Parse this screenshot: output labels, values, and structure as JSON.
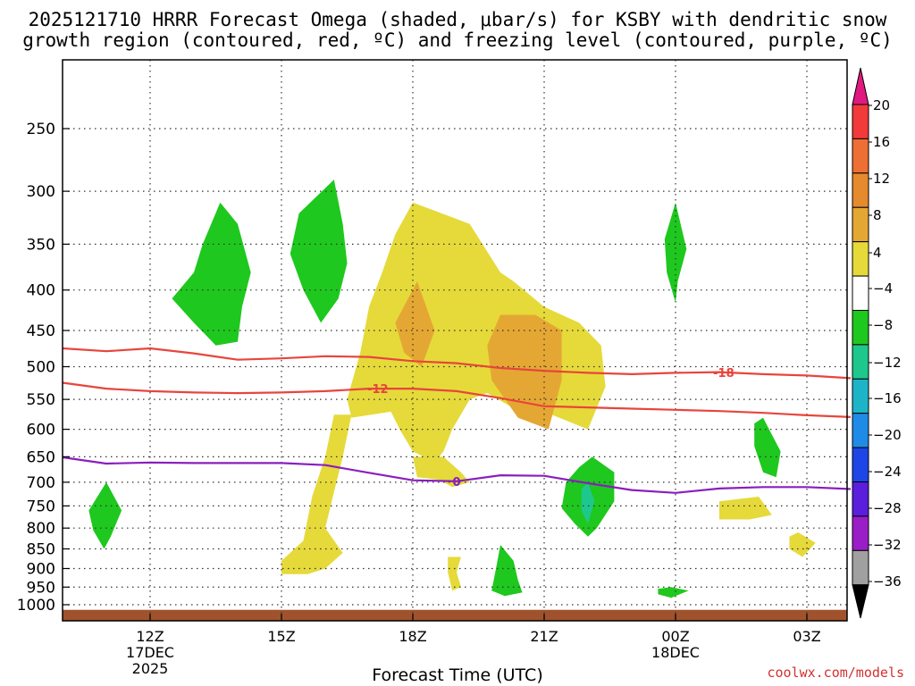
{
  "header": {
    "title_line1": "2025121710 HRRR Forecast Omega (shaded, μbar/s) for KSBY with dendritic snow",
    "title_line2": "growth region (contoured, red, ºC) and freezing level (contoured, purple, ºC)"
  },
  "footer": {
    "credit": "coolwx.com/models"
  },
  "chart_data": {
    "type": "heatmap",
    "title": "2025121710 HRRR Forecast Omega (shaded, μbar/s) for KSBY with dendritic snow growth region (contoured, red, ºC) and freezing level (contoured, purple, ºC)",
    "xlabel": "Forecast Time (UTC)",
    "ylabel": "",
    "y_scale": "log-pressure",
    "y_range_hpa": [
      1050,
      200
    ],
    "grid": true,
    "x_ticks": [
      {
        "label": "12Z",
        "sub1": "17DEC",
        "sub2": "2025",
        "hour": 12
      },
      {
        "label": "15Z",
        "sub1": "",
        "sub2": "",
        "hour": 15
      },
      {
        "label": "18Z",
        "sub1": "",
        "sub2": "",
        "hour": 18
      },
      {
        "label": "21Z",
        "sub1": "",
        "sub2": "",
        "hour": 21
      },
      {
        "label": "00Z",
        "sub1": "18DEC",
        "sub2": "",
        "hour": 24
      },
      {
        "label": "03Z",
        "sub1": "",
        "sub2": "",
        "hour": 27
      }
    ],
    "y_ticks": [
      250,
      300,
      350,
      400,
      450,
      500,
      550,
      600,
      650,
      700,
      750,
      800,
      850,
      900,
      950,
      1000
    ],
    "colorbar": {
      "labels": [
        "20",
        "16",
        "12",
        "8",
        "4",
        "−4",
        "−8",
        "−12",
        "−16",
        "−20",
        "−24",
        "−28",
        "−32",
        "−36"
      ],
      "colors": [
        "#f23a3a",
        "#ee6f33",
        "#e68a2e",
        "#e5a733",
        "#e5da3a",
        "#ffffff",
        "#1ec81e",
        "#1ec88c",
        "#1eb4c8",
        "#1e8ce6",
        "#1e46e6",
        "#5a1edc",
        "#9a1ec8",
        "#a0a0a0"
      ],
      "top_arrow_color": "#e01a80",
      "bottom_arrow_color": "#000000"
    },
    "dendritic_contours": [
      {
        "label": "-18",
        "color": "#e8453c",
        "points": [
          [
            10.0,
            474
          ],
          [
            11.0,
            478
          ],
          [
            12.0,
            474
          ],
          [
            13.0,
            481
          ],
          [
            14.0,
            490
          ],
          [
            15.0,
            488
          ],
          [
            16.0,
            485
          ],
          [
            17.0,
            486
          ],
          [
            18.0,
            492
          ],
          [
            19.0,
            495
          ],
          [
            20.0,
            502
          ],
          [
            21.0,
            506
          ],
          [
            22.0,
            509
          ],
          [
            23.0,
            511
          ],
          [
            24.0,
            509
          ],
          [
            25.0,
            508
          ],
          [
            26.0,
            511
          ],
          [
            27.0,
            513
          ],
          [
            28.0,
            517
          ]
        ]
      },
      {
        "label": "-12",
        "color": "#e8453c",
        "points": [
          [
            10.0,
            524
          ],
          [
            11.0,
            533
          ],
          [
            12.0,
            537
          ],
          [
            13.0,
            539
          ],
          [
            14.0,
            540
          ],
          [
            15.0,
            539
          ],
          [
            16.0,
            537
          ],
          [
            17.0,
            533
          ],
          [
            18.0,
            533
          ],
          [
            19.0,
            537
          ],
          [
            20.0,
            548
          ],
          [
            21.0,
            561
          ],
          [
            22.0,
            563
          ],
          [
            23.0,
            565
          ],
          [
            24.0,
            567
          ],
          [
            25.0,
            569
          ],
          [
            26.0,
            572
          ],
          [
            27.0,
            576
          ],
          [
            28.0,
            579
          ]
        ]
      }
    ],
    "freezing_level": {
      "label": "0",
      "color": "#8a1ebe",
      "points": [
        [
          10.0,
          651
        ],
        [
          11.0,
          663
        ],
        [
          12.0,
          661
        ],
        [
          13.0,
          662
        ],
        [
          14.0,
          662
        ],
        [
          15.0,
          662
        ],
        [
          16.0,
          666
        ],
        [
          17.0,
          681
        ],
        [
          18.0,
          696
        ],
        [
          19.0,
          698
        ],
        [
          20.0,
          686
        ],
        [
          21.0,
          687
        ],
        [
          22.0,
          702
        ],
        [
          23.0,
          716
        ],
        [
          24.0,
          722
        ],
        [
          25.0,
          713
        ],
        [
          26.0,
          710
        ],
        [
          27.0,
          710
        ],
        [
          28.0,
          714
        ]
      ]
    },
    "shaded_regions": [
      {
        "class": "-8 to -4",
        "color": "#1ec81e",
        "center_hour": 13.5,
        "pressure_range_hpa": [
          310,
          470
        ]
      },
      {
        "class": "-8 to -4",
        "color": "#1ec81e",
        "center_hour": 15.9,
        "pressure_range_hpa": [
          290,
          440
        ]
      },
      {
        "class": "-8 to -4",
        "color": "#1ec81e",
        "center_hour": 11.0,
        "pressure_range_hpa": [
          700,
          850
        ]
      },
      {
        "class": "-8 to -4",
        "color": "#1ec81e",
        "center_hour": 24.0,
        "pressure_range_hpa": [
          310,
          415
        ]
      },
      {
        "class": "-8 to -4",
        "color": "#1ec81e",
        "center_hour": 22.0,
        "pressure_range_hpa": [
          650,
          820
        ]
      },
      {
        "class": "-12 to -8",
        "color": "#1ec88c",
        "center_hour": 22.0,
        "pressure_range_hpa": [
          700,
          790
        ]
      },
      {
        "class": "-8 to -4",
        "color": "#1ec81e",
        "center_hour": 20.2,
        "pressure_range_hpa": [
          840,
          975
        ]
      },
      {
        "class": "-8 to -4",
        "color": "#1ec81e",
        "center_hour": 26.0,
        "pressure_range_hpa": [
          580,
          690
        ]
      },
      {
        "class": "-8 to -4",
        "color": "#1ec81e",
        "center_hour": 23.9,
        "pressure_range_hpa": [
          950,
          980
        ]
      },
      {
        "class": "4 to 8",
        "color": "#e5da3a",
        "center_hour": 19.5,
        "pressure_range_hpa": [
          310,
          710
        ]
      },
      {
        "class": "4 to 8",
        "color": "#e5da3a",
        "center_hour": 15.8,
        "pressure_range_hpa": [
          575,
          915
        ]
      },
      {
        "class": "4 to 8",
        "color": "#e5da3a",
        "center_hour": 18.9,
        "pressure_range_hpa": [
          870,
          960
        ]
      },
      {
        "class": "4 to 8",
        "color": "#e5da3a",
        "center_hour": 25.2,
        "pressure_range_hpa": [
          730,
          780
        ]
      },
      {
        "class": "4 to 8",
        "color": "#e5da3a",
        "center_hour": 26.9,
        "pressure_range_hpa": [
          810,
          870
        ]
      },
      {
        "class": "8 to 12",
        "color": "#e5a733",
        "center_hour": 18.1,
        "pressure_range_hpa": [
          390,
          500
        ]
      },
      {
        "class": "8 to 12",
        "color": "#e5a733",
        "center_hour": 20.8,
        "pressure_range_hpa": [
          430,
          600
        ]
      }
    ]
  }
}
